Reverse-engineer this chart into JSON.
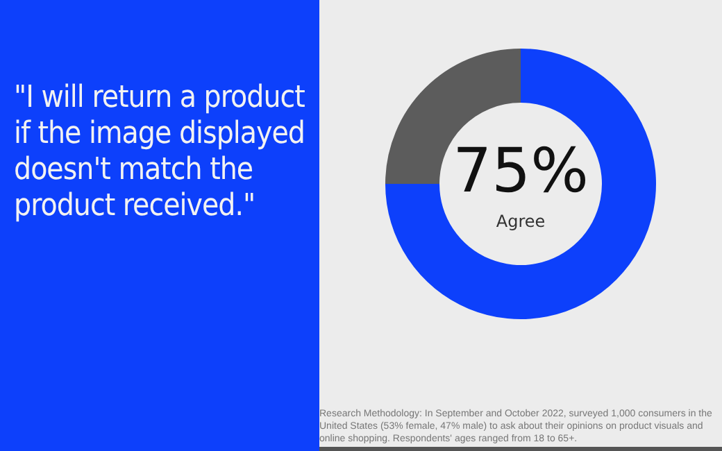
{
  "chart_data": {
    "type": "donut",
    "title": "\"I will return a product if the image displayed doesn't match the product received.\"",
    "categories": [
      "Agree",
      null
    ],
    "values": [
      75,
      25
    ],
    "colors": [
      "#0d40fb",
      "#5c5c5c"
    ],
    "value_labels": [
      "75%",
      null
    ],
    "annotations": [
      "Research Methodology: In September and October 2022, surveyed 1,000 consumers in the United States (53% female, 47% male) to ask about their opinions on product visuals and online shopping. Respondents' ages ranged from 18 to 65+."
    ]
  }
}
